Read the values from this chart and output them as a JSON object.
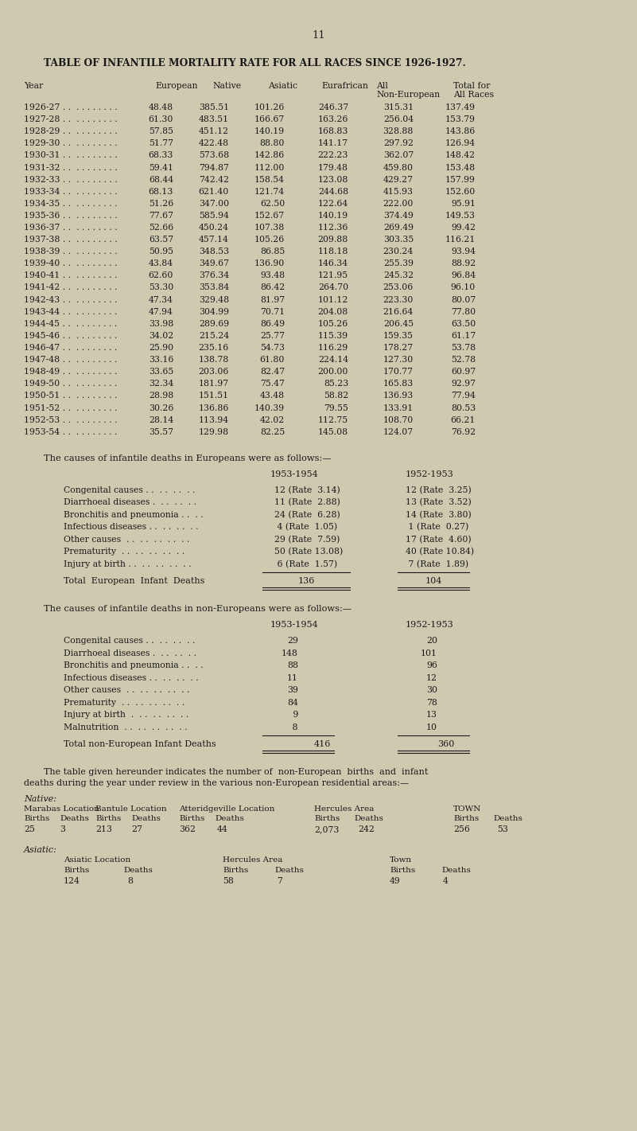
{
  "page_number": "11",
  "title": "TABLE OF INFANTILE MORTALITY RATE FOR ALL RACES SINCE 1926-1927.",
  "bg_color": "#cfc9b0",
  "table1_rows": [
    [
      "1926-27 . .  . . . . . . . .",
      "48.48",
      "385.51",
      "101.26",
      "246.37",
      "315.31",
      "137.49"
    ],
    [
      "1927-28 . .  . . . . . . . .",
      "61.30",
      "483.51",
      "166.67",
      "163.26",
      "256.04",
      "153.79"
    ],
    [
      "1928-29 . .  . . . . . . . .",
      "57.85",
      "451.12",
      "140.19",
      "168.83",
      "328.88",
      "143.86"
    ],
    [
      "1929-30 . .  . . . . . . . .",
      "51.77",
      "422.48",
      "88.80",
      "141.17",
      "297.92",
      "126.94"
    ],
    [
      "1930-31 . .  . . . . . . . .",
      "68.33",
      "573.68",
      "142.86",
      "222.23",
      "362.07",
      "148.42"
    ],
    [
      "1931-32 . .  . . . . . . . .",
      "59.41",
      "794.87",
      "112.00",
      "179.48",
      "459.80",
      "153.48"
    ],
    [
      "1932-33 . .  . . . . . . . .",
      "68.44",
      "742.42",
      "158.54",
      "123.08",
      "429.27",
      "157.99"
    ],
    [
      "1933-34 . .  . . . . . . . .",
      "68.13",
      "621.40",
      "121.74",
      "244.68",
      "415.93",
      "152.60"
    ],
    [
      "1934-35 . .  . . . . . . . .",
      "51.26",
      "347.00",
      "62.50",
      "122.64",
      "222.00",
      "95.91"
    ],
    [
      "1935-36 . .  . . . . . . . .",
      "77.67",
      "585.94",
      "152.67",
      "140.19",
      "374.49",
      "149.53"
    ],
    [
      "1936-37 . .  . . . . . . . .",
      "52.66",
      "450.24",
      "107.38",
      "112.36",
      "269.49",
      "99.42"
    ],
    [
      "1937-38 . .  . . . . . . . .",
      "63.57",
      "457.14",
      "105.26",
      "209.88",
      "303.35",
      "116.21"
    ],
    [
      "1938-39 . .  . . . . . . . .",
      "50.95",
      "348.53",
      "86.85",
      "118.18",
      "230.24",
      "93.94"
    ],
    [
      "1939-40 . .  . . . . . . . .",
      "43.84",
      "349.67",
      "136.90",
      "146.34",
      "255.39",
      "88.92"
    ],
    [
      "1940-41 . .  . . . . . . . .",
      "62.60",
      "376.34",
      "93.48",
      "121.95",
      "245.32",
      "96.84"
    ],
    [
      "1941-42 . .  . . . . . . . .",
      "53.30",
      "353.84",
      "86.42",
      "264.70",
      "253.06",
      "96.10"
    ],
    [
      "1942-43 . .  . . . . . . . .",
      "47.34",
      "329.48",
      "81.97",
      "101.12",
      "223.30",
      "80.07"
    ],
    [
      "1943-44 . .  . . . . . . . .",
      "47.94",
      "304.99",
      "70.71",
      "204.08",
      "216.64",
      "77.80"
    ],
    [
      "1944-45 . .  . . . . . . . .",
      "33.98",
      "289.69",
      "86.49",
      "105.26",
      "206.45",
      "63.50"
    ],
    [
      "1945-46 . .  . . . . . . . .",
      "34.02",
      "215.24",
      "25.77",
      "115.39",
      "159.35",
      "61.17"
    ],
    [
      "1946-47 . .  . . . . . . . .",
      "25.90",
      "235.16",
      "54.73",
      "116.29",
      "178.27",
      "53.78"
    ],
    [
      "1947-48 . .  . . . . . . . .",
      "33.16",
      "138.78",
      "61.80",
      "224.14",
      "127.30",
      "52.78"
    ],
    [
      "1948-49 . .  . . . . . . . .",
      "33.65",
      "203.06",
      "82.47",
      "200.00",
      "170.77",
      "60.97"
    ],
    [
      "1949-50 . .  . . . . . . . .",
      "32.34",
      "181.97",
      "75.47",
      "85.23",
      "165.83",
      "92.97"
    ],
    [
      "1950-51 . .  . . . . . . . .",
      "28.98",
      "151.51",
      "43.48",
      "58.82",
      "136.93",
      "77.94"
    ],
    [
      "1951-52 . .  . . . . . . . .",
      "30.26",
      "136.86",
      "140.39",
      "79.55",
      "133.91",
      "80.53"
    ],
    [
      "1952-53 . .  . . . . . . . .",
      "28.14",
      "113.94",
      "42.02",
      "112.75",
      "108.70",
      "66.21"
    ],
    [
      "1953-54 . .  . . . . . . . .",
      "35.57",
      "129.98",
      "82.25",
      "145.08",
      "124.07",
      "76.92"
    ]
  ],
  "euro_causes_title": "The causes of infantile deaths in Europeans were as follows:—",
  "euro_causes_years": [
    "1953-1954",
    "1952-1953"
  ],
  "euro_causes": [
    [
      "Congenital causes . .  . .  . .  . .",
      "12 (Rate  3.14)",
      "12 (Rate  3.25)"
    ],
    [
      "Diarrhoeal diseases .  . .  . .  . .",
      "11 (Rate  2.88)",
      "13 (Rate  3.52)"
    ],
    [
      "Bronchitis and pneumonia . .  . .",
      "24 (Rate  6.28)",
      "14 (Rate  3.80)"
    ],
    [
      "Infectious diseases . .  . .  . .  . .",
      " 4 (Rate  1.05)",
      " 1 (Rate  0.27)"
    ],
    [
      "Other causes  . .  . .  . .  . .  . .",
      "29 (Rate  7.59)",
      "17 (Rate  4.60)"
    ],
    [
      "Prematurity  . .  . .  . .  . .  . .",
      "50 (Rate 13.08)",
      "40 (Rate 10.84)"
    ],
    [
      "Injury at birth . .  . .  . .  . .  . .",
      " 6 (Rate  1.57)",
      " 7 (Rate  1.89)"
    ]
  ],
  "euro_total_label": "Total  European  Infant  Deaths",
  "euro_totals": [
    "136",
    "104"
  ],
  "noneuro_causes_title": "The causes of infantile deaths in non-Europeans were as follows:—",
  "noneuro_causes_years": [
    "1953-1954",
    "1952-1953"
  ],
  "noneuro_causes": [
    [
      "Congenital causes . .  . .  . .  . .",
      "29",
      "20"
    ],
    [
      "Diarrhoeal diseases .  . .  . .  . .",
      "148",
      "101"
    ],
    [
      "Bronchitis and pneumonia . .  . .",
      "88",
      "96"
    ],
    [
      "Infectious diseases . .  . .  . .  . .",
      "11",
      "12"
    ],
    [
      "Other causes  . .  . .  . .  . .  . .",
      "39",
      "30"
    ],
    [
      "Prematurity  . .  . .  . .  . .  . .",
      "84",
      "78"
    ],
    [
      "Injury at birth  .  . .  . .  . .  . .",
      " 9",
      "13"
    ],
    [
      "Malnutrition  . .  . .  . .  . .  . .",
      " 8",
      "10"
    ]
  ],
  "noneuro_total_label": "Total non-European Infant Deaths",
  "noneuro_totals": [
    "416",
    "360"
  ],
  "para_line1": "The table given hereunder indicates the number of  non-European  births  and  infant",
  "para_line2": "deaths during the year under review in the various non-European residential areas:—",
  "native_label": "Native:",
  "native_locs": [
    "Marabas Location",
    "Bantule Location",
    "Atteridgeville Location",
    "Hercules Area",
    "TOWN"
  ],
  "native_births": [
    "25",
    "213",
    "362",
    "2,073",
    "256"
  ],
  "native_deaths": [
    "3",
    "27",
    "44",
    "242",
    "53"
  ],
  "asiatic_label": "Asiatic:",
  "asiatic_locs": [
    "Asiatic Location",
    "Hercules Area",
    "Town"
  ],
  "asiatic_births": [
    "124",
    "58",
    "49"
  ],
  "asiatic_deaths": [
    "8",
    "7",
    "4"
  ]
}
